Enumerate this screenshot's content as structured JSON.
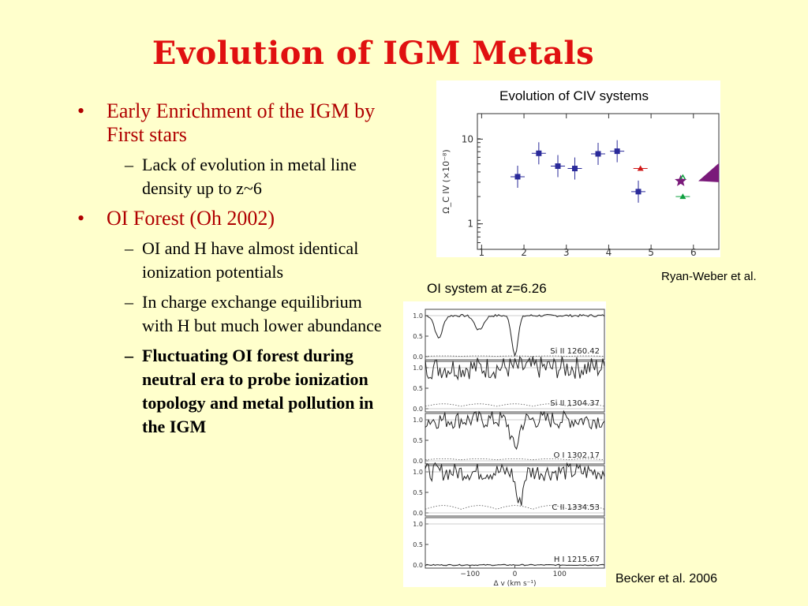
{
  "slide": {
    "title": "Evolution of IGM Metals",
    "bullets": [
      {
        "text": "Early Enrichment of the IGM by First stars",
        "subs": [
          "Lack of evolution in metal line density up to z~6"
        ]
      },
      {
        "text": "OI Forest (Oh 2002)",
        "subs": [
          "OI and H have almost identical ionization potentials",
          "In charge exchange equilibrium with H but much lower abundance",
          "Fluctuating OI forest during neutral era to probe ionization topology and metal pollution in the IGM"
        ]
      }
    ],
    "bullet_mark": "•",
    "sub_mark": "–"
  },
  "colors": {
    "title": "#e01010",
    "bullet": "#b00000",
    "background": "#ffffcc"
  },
  "figures": {
    "civ": {
      "title": "Evolution of CIV systems",
      "credit": "Ryan-Weber et al."
    },
    "oi": {
      "title": "OI system at z=6.26",
      "credit": "Becker et al. 2006"
    }
  },
  "chart_data": [
    {
      "type": "scatter",
      "title": "Evolution of CIV systems",
      "ylabel": "Ω_C IV (×10⁻⁸)",
      "y_scale": "log",
      "xlim": [
        0.9,
        6.6
      ],
      "ylim": [
        0.5,
        20
      ],
      "xticks": [
        "1",
        "2",
        "3",
        "4",
        "5",
        "6"
      ],
      "yticks": [
        "1",
        "10"
      ],
      "series": [
        {
          "color": "#2a2a9a",
          "marker": "square",
          "x": [
            1.85,
            2.35,
            2.8,
            3.2,
            3.75,
            4.2,
            4.7
          ],
          "y": [
            3.6,
            6.8,
            4.8,
            4.5,
            6.7,
            7.2,
            2.4
          ]
        },
        {
          "color": "#d01818",
          "marker": "triangle",
          "x": [
            4.75
          ],
          "y": [
            4.5
          ]
        },
        {
          "color": "#7a1a7a",
          "marker": "star",
          "x": [
            5.7
          ],
          "y": [
            3.2
          ]
        },
        {
          "color": "#10a040",
          "marker": "triangle",
          "x": [
            5.75
          ],
          "y": [
            2.1
          ]
        }
      ]
    },
    {
      "type": "line",
      "title": "OI system at z=6.26",
      "xlabel": "Δ v (km s⁻¹)",
      "xlim": [
        -200,
        200
      ],
      "xticks": [
        "−100",
        "0",
        "100"
      ],
      "yticks": [
        "1.0",
        "0.5",
        "0.0"
      ],
      "panels": [
        {
          "label": "Si II 1260.42"
        },
        {
          "label": "Si II 1304.37"
        },
        {
          "label": "O I 1302.17"
        },
        {
          "label": "C II 1334.53"
        },
        {
          "label": "H I 1215.67"
        }
      ]
    }
  ]
}
